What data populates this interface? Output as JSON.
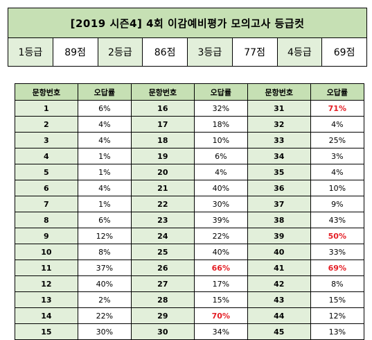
{
  "title": "[2019 시즌4] 4회 이감예비평가 모의고사 등급컷",
  "grades": [
    {
      "label": "1등급",
      "score": "89점"
    },
    {
      "label": "2등급",
      "score": "86점"
    },
    {
      "label": "3등급",
      "score": "77점"
    },
    {
      "label": "4등급",
      "score": "69점"
    }
  ],
  "table": {
    "headers": [
      "문항번호",
      "오답률",
      "문항번호",
      "오답률",
      "문항번호",
      "오답률"
    ],
    "highlight_color": "#e41e25",
    "rows": [
      [
        {
          "q": "1",
          "r": "6%"
        },
        {
          "q": "16",
          "r": "32%"
        },
        {
          "q": "31",
          "r": "71%",
          "hl": true
        }
      ],
      [
        {
          "q": "2",
          "r": "4%"
        },
        {
          "q": "17",
          "r": "18%"
        },
        {
          "q": "32",
          "r": "4%"
        }
      ],
      [
        {
          "q": "3",
          "r": "4%"
        },
        {
          "q": "18",
          "r": "10%"
        },
        {
          "q": "33",
          "r": "25%"
        }
      ],
      [
        {
          "q": "4",
          "r": "1%"
        },
        {
          "q": "19",
          "r": "6%"
        },
        {
          "q": "34",
          "r": "3%"
        }
      ],
      [
        {
          "q": "5",
          "r": "1%"
        },
        {
          "q": "20",
          "r": "4%"
        },
        {
          "q": "35",
          "r": "4%"
        }
      ],
      [
        {
          "q": "6",
          "r": "4%"
        },
        {
          "q": "21",
          "r": "40%"
        },
        {
          "q": "36",
          "r": "10%"
        }
      ],
      [
        {
          "q": "7",
          "r": "1%"
        },
        {
          "q": "22",
          "r": "30%"
        },
        {
          "q": "37",
          "r": "9%"
        }
      ],
      [
        {
          "q": "8",
          "r": "6%"
        },
        {
          "q": "23",
          "r": "39%"
        },
        {
          "q": "38",
          "r": "43%"
        }
      ],
      [
        {
          "q": "9",
          "r": "12%"
        },
        {
          "q": "24",
          "r": "22%"
        },
        {
          "q": "39",
          "r": "50%",
          "hl": true
        }
      ],
      [
        {
          "q": "10",
          "r": "8%"
        },
        {
          "q": "25",
          "r": "40%"
        },
        {
          "q": "40",
          "r": "33%"
        }
      ],
      [
        {
          "q": "11",
          "r": "37%"
        },
        {
          "q": "26",
          "r": "66%",
          "hl": true
        },
        {
          "q": "41",
          "r": "69%",
          "hl": true
        }
      ],
      [
        {
          "q": "12",
          "r": "40%"
        },
        {
          "q": "27",
          "r": "17%"
        },
        {
          "q": "42",
          "r": "8%"
        }
      ],
      [
        {
          "q": "13",
          "r": "2%"
        },
        {
          "q": "28",
          "r": "15%"
        },
        {
          "q": "43",
          "r": "15%"
        }
      ],
      [
        {
          "q": "14",
          "r": "22%"
        },
        {
          "q": "29",
          "r": "70%",
          "hl": true
        },
        {
          "q": "44",
          "r": "12%"
        }
      ],
      [
        {
          "q": "15",
          "r": "30%"
        },
        {
          "q": "30",
          "r": "34%"
        },
        {
          "q": "45",
          "r": "13%"
        }
      ]
    ]
  }
}
